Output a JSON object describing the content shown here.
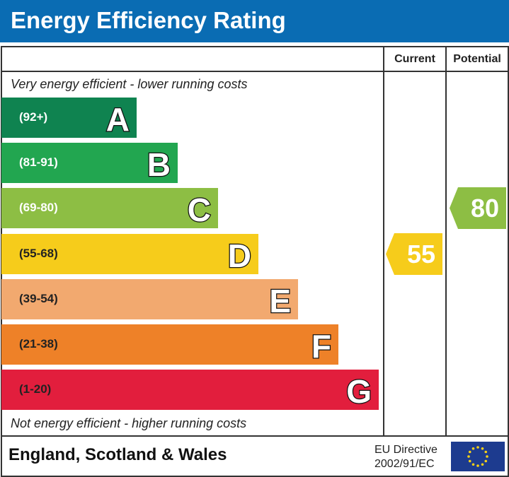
{
  "title": "Energy Efficiency Rating",
  "chart_data": {
    "type": "bar",
    "columns": [
      "Current",
      "Potential"
    ],
    "top_note": "Very energy efficient - lower running costs",
    "bottom_note": "Not energy efficient - higher running costs",
    "bands": [
      {
        "letter": "A",
        "range": "(92+)",
        "color": "#0f8350"
      },
      {
        "letter": "B",
        "range": "(81-91)",
        "color": "#22a650"
      },
      {
        "letter": "C",
        "range": "(69-80)",
        "color": "#8dbe44"
      },
      {
        "letter": "D",
        "range": "(55-68)",
        "color": "#f6cc1b"
      },
      {
        "letter": "E",
        "range": "(39-54)",
        "color": "#f2a96f"
      },
      {
        "letter": "F",
        "range": "(21-38)",
        "color": "#ee8128"
      },
      {
        "letter": "G",
        "range": "(1-20)",
        "color": "#e21e3d"
      }
    ],
    "current": {
      "value": "55",
      "band": "D",
      "color": "#f6cc1b"
    },
    "potential": {
      "value": "80",
      "band": "C",
      "color": "#8dbe44"
    }
  },
  "footer": {
    "region": "England, Scotland & Wales",
    "directive_line1": "EU Directive",
    "directive_line2": "2002/91/EC"
  }
}
